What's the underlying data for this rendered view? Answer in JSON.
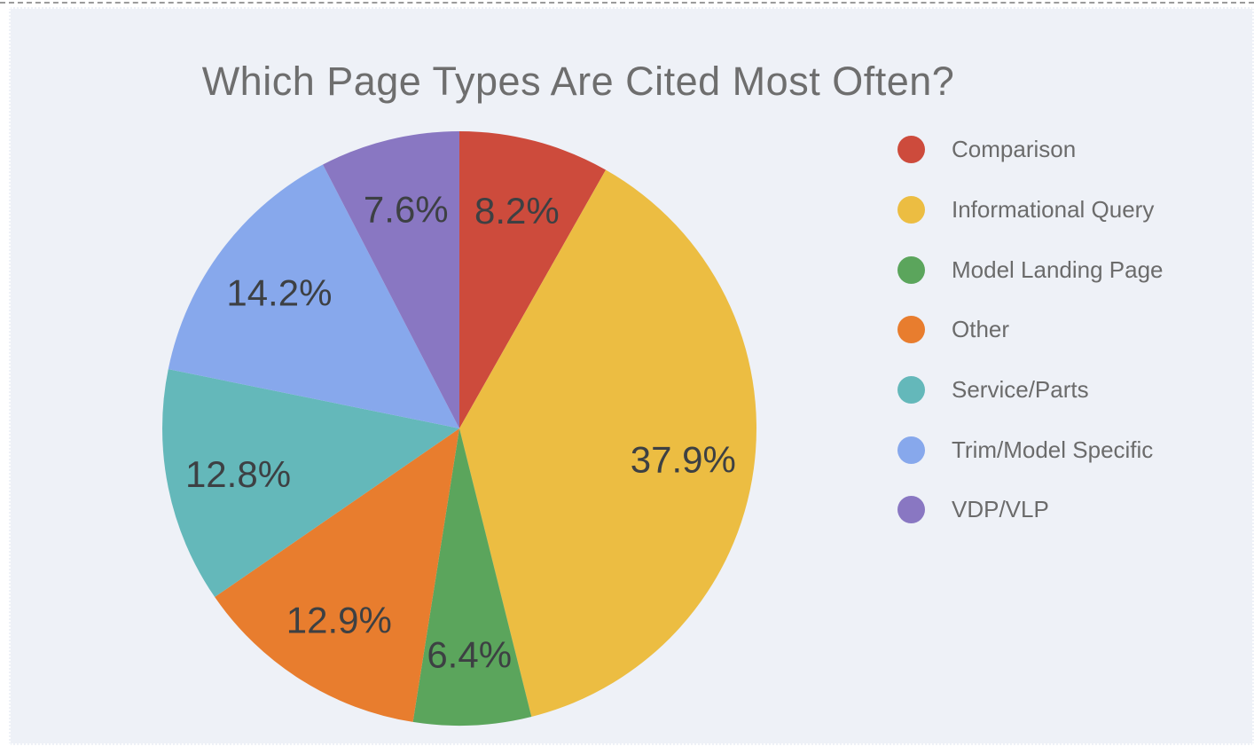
{
  "page": {
    "panel_background": "#eef1f7",
    "page_background": "#ffffff",
    "top_rule_color": "#9b9b9b"
  },
  "chart_data": {
    "type": "pie",
    "title": "Which Page Types Are Cited Most Often?",
    "legend_position": "right",
    "direction": "clockwise",
    "start_angle_deg": 0,
    "title_color": "#6e6e6e",
    "slice_label_color": "#3d4043",
    "legend_text_color": "#6b6b6b",
    "slices": [
      {
        "label": "Comparison",
        "value": 8.2,
        "display": "8.2%",
        "color": "#cd4b3c"
      },
      {
        "label": "Informational Query",
        "value": 37.9,
        "display": "37.9%",
        "color": "#ecbd42"
      },
      {
        "label": "Model Landing Page",
        "value": 6.4,
        "display": "6.4%",
        "color": "#5ba55c"
      },
      {
        "label": "Other",
        "value": 12.9,
        "display": "12.9%",
        "color": "#e87d2e"
      },
      {
        "label": "Service/Parts",
        "value": 12.8,
        "display": "12.8%",
        "color": "#64b8ba"
      },
      {
        "label": "Trim/Model Specific",
        "value": 14.2,
        "display": "14.2%",
        "color": "#87a8ec"
      },
      {
        "label": "VDP/VLP",
        "value": 7.6,
        "display": "7.6%",
        "color": "#8977c2"
      }
    ]
  }
}
